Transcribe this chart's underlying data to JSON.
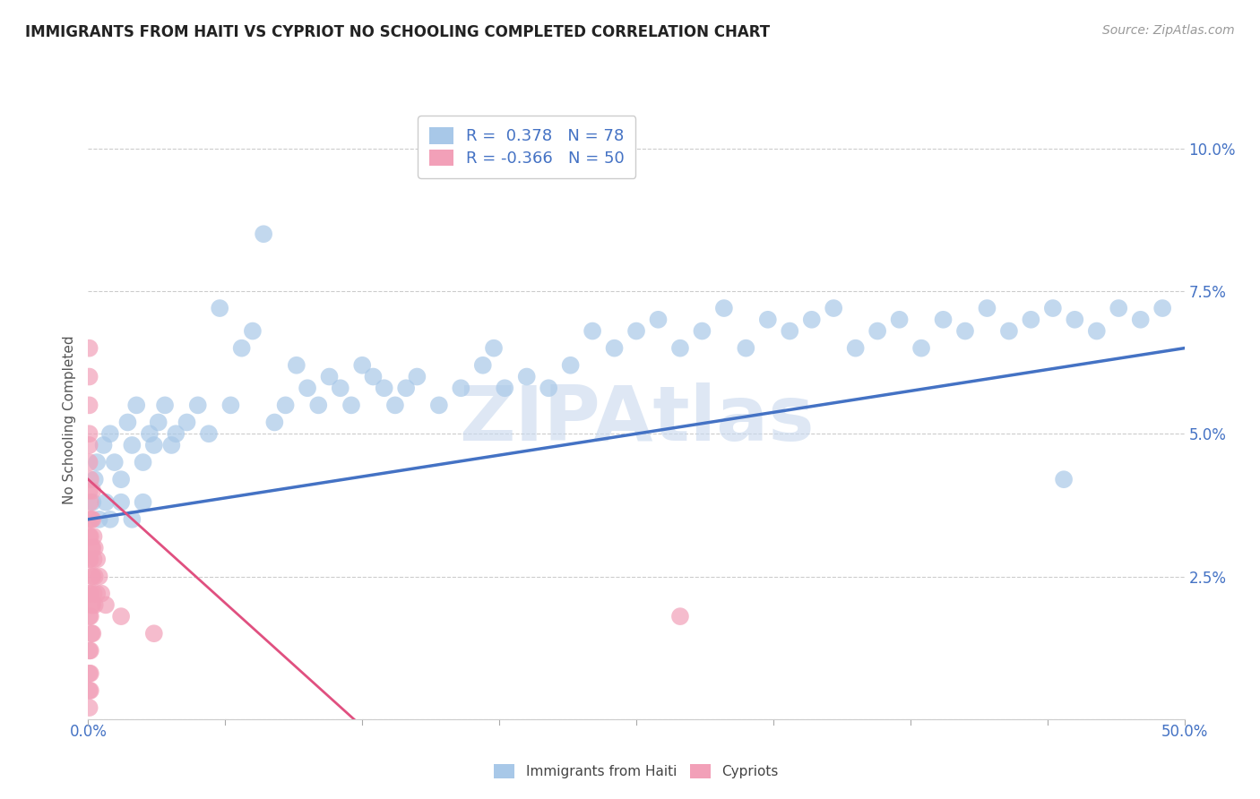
{
  "title": "IMMIGRANTS FROM HAITI VS CYPRIOT NO SCHOOLING COMPLETED CORRELATION CHART",
  "source": "Source: ZipAtlas.com",
  "ylabel": "No Schooling Completed",
  "xlim": [
    0.0,
    50.0
  ],
  "ylim": [
    0.0,
    10.5
  ],
  "yticks": [
    0.0,
    2.5,
    5.0,
    7.5,
    10.0
  ],
  "ytick_labels": [
    "",
    "2.5%",
    "5.0%",
    "7.5%",
    "10.0%"
  ],
  "xticks": [
    0.0,
    6.25,
    12.5,
    18.75,
    25.0,
    31.25,
    37.5,
    43.75,
    50.0
  ],
  "legend_haiti_r": "0.378",
  "legend_haiti_n": "78",
  "legend_cypriot_r": "-0.366",
  "legend_cypriot_n": "50",
  "haiti_color": "#a8c8e8",
  "cypriot_color": "#f2a0b8",
  "haiti_line_color": "#4472c4",
  "cypriot_line_color": "#e05080",
  "watermark": "ZIPAtlas",
  "watermark_color": "#c8d8ee",
  "haiti_scatter": [
    [
      0.3,
      4.2
    ],
    [
      0.5,
      3.5
    ],
    [
      0.7,
      4.8
    ],
    [
      0.8,
      3.8
    ],
    [
      1.0,
      5.0
    ],
    [
      1.2,
      4.5
    ],
    [
      1.5,
      4.2
    ],
    [
      1.8,
      5.2
    ],
    [
      2.0,
      4.8
    ],
    [
      2.2,
      5.5
    ],
    [
      2.5,
      4.5
    ],
    [
      2.8,
      5.0
    ],
    [
      3.0,
      4.8
    ],
    [
      3.2,
      5.2
    ],
    [
      3.5,
      5.5
    ],
    [
      3.8,
      4.8
    ],
    [
      4.0,
      5.0
    ],
    [
      4.5,
      5.2
    ],
    [
      5.0,
      5.5
    ],
    [
      5.5,
      5.0
    ],
    [
      6.0,
      7.2
    ],
    [
      6.5,
      5.5
    ],
    [
      7.0,
      6.5
    ],
    [
      7.5,
      6.8
    ],
    [
      8.0,
      8.5
    ],
    [
      8.5,
      5.2
    ],
    [
      9.0,
      5.5
    ],
    [
      9.5,
      6.2
    ],
    [
      10.0,
      5.8
    ],
    [
      10.5,
      5.5
    ],
    [
      11.0,
      6.0
    ],
    [
      11.5,
      5.8
    ],
    [
      12.0,
      5.5
    ],
    [
      12.5,
      6.2
    ],
    [
      13.0,
      6.0
    ],
    [
      13.5,
      5.8
    ],
    [
      14.0,
      5.5
    ],
    [
      14.5,
      5.8
    ],
    [
      15.0,
      6.0
    ],
    [
      16.0,
      5.5
    ],
    [
      17.0,
      5.8
    ],
    [
      18.0,
      6.2
    ],
    [
      18.5,
      6.5
    ],
    [
      19.0,
      5.8
    ],
    [
      20.0,
      6.0
    ],
    [
      21.0,
      5.8
    ],
    [
      22.0,
      6.2
    ],
    [
      23.0,
      6.8
    ],
    [
      24.0,
      6.5
    ],
    [
      25.0,
      6.8
    ],
    [
      26.0,
      7.0
    ],
    [
      27.0,
      6.5
    ],
    [
      28.0,
      6.8
    ],
    [
      29.0,
      7.2
    ],
    [
      30.0,
      6.5
    ],
    [
      31.0,
      7.0
    ],
    [
      32.0,
      6.8
    ],
    [
      33.0,
      7.0
    ],
    [
      34.0,
      7.2
    ],
    [
      35.0,
      6.5
    ],
    [
      36.0,
      6.8
    ],
    [
      37.0,
      7.0
    ],
    [
      38.0,
      6.5
    ],
    [
      39.0,
      7.0
    ],
    [
      40.0,
      6.8
    ],
    [
      41.0,
      7.2
    ],
    [
      42.0,
      6.8
    ],
    [
      43.0,
      7.0
    ],
    [
      44.0,
      7.2
    ],
    [
      44.5,
      4.2
    ],
    [
      45.0,
      7.0
    ],
    [
      46.0,
      6.8
    ],
    [
      47.0,
      7.2
    ],
    [
      48.0,
      7.0
    ],
    [
      49.0,
      7.2
    ],
    [
      0.2,
      3.8
    ],
    [
      0.4,
      4.5
    ],
    [
      1.0,
      3.5
    ],
    [
      1.5,
      3.8
    ],
    [
      2.0,
      3.5
    ],
    [
      2.5,
      3.8
    ]
  ],
  "cypriot_scatter": [
    [
      0.05,
      3.5
    ],
    [
      0.05,
      3.2
    ],
    [
      0.05,
      4.0
    ],
    [
      0.05,
      4.5
    ],
    [
      0.05,
      5.0
    ],
    [
      0.05,
      5.5
    ],
    [
      0.05,
      6.0
    ],
    [
      0.05,
      6.5
    ],
    [
      0.05,
      2.8
    ],
    [
      0.05,
      2.2
    ],
    [
      0.05,
      1.8
    ],
    [
      0.05,
      1.2
    ],
    [
      0.05,
      0.8
    ],
    [
      0.05,
      0.5
    ],
    [
      0.05,
      0.2
    ],
    [
      0.1,
      4.2
    ],
    [
      0.1,
      3.8
    ],
    [
      0.1,
      3.2
    ],
    [
      0.1,
      2.8
    ],
    [
      0.1,
      2.2
    ],
    [
      0.1,
      1.8
    ],
    [
      0.1,
      1.2
    ],
    [
      0.1,
      0.8
    ],
    [
      0.1,
      0.5
    ],
    [
      0.15,
      3.5
    ],
    [
      0.15,
      3.0
    ],
    [
      0.15,
      2.5
    ],
    [
      0.15,
      2.0
    ],
    [
      0.15,
      1.5
    ],
    [
      0.2,
      4.0
    ],
    [
      0.2,
      3.5
    ],
    [
      0.2,
      3.0
    ],
    [
      0.2,
      2.5
    ],
    [
      0.2,
      2.0
    ],
    [
      0.2,
      1.5
    ],
    [
      0.25,
      3.2
    ],
    [
      0.25,
      2.8
    ],
    [
      0.25,
      2.2
    ],
    [
      0.3,
      3.0
    ],
    [
      0.3,
      2.5
    ],
    [
      0.3,
      2.0
    ],
    [
      0.4,
      2.8
    ],
    [
      0.4,
      2.2
    ],
    [
      0.5,
      2.5
    ],
    [
      0.6,
      2.2
    ],
    [
      0.8,
      2.0
    ],
    [
      1.5,
      1.8
    ],
    [
      3.0,
      1.5
    ],
    [
      27.0,
      1.8
    ],
    [
      0.05,
      4.8
    ]
  ],
  "haiti_trend": {
    "x_start": 0.0,
    "y_start": 3.5,
    "x_end": 50.0,
    "y_end": 6.5
  },
  "cypriot_trend": {
    "x_start": 0.0,
    "y_start": 4.2,
    "x_end": 15.0,
    "y_end": -1.0
  }
}
